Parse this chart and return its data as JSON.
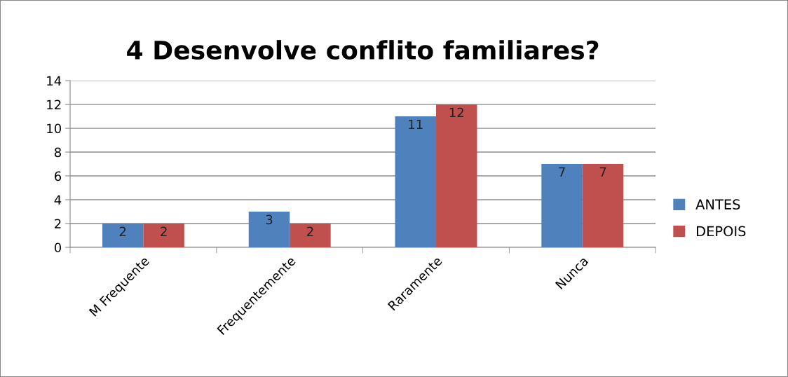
{
  "chart_data": {
    "type": "bar",
    "title": "4 Desenvolve conflito familiares?",
    "categories": [
      "M Frequente",
      "Frequentemente",
      "Raramente",
      "Nunca"
    ],
    "series": [
      {
        "name": "ANTES",
        "color": "#4f81bd",
        "values": [
          2,
          3,
          11,
          7
        ]
      },
      {
        "name": "DEPOIS",
        "color": "#c0504d",
        "values": [
          2,
          2,
          12,
          7
        ]
      }
    ],
    "ylim": [
      0,
      14
    ],
    "yticks": [
      0,
      2,
      4,
      6,
      8,
      10,
      12,
      14
    ],
    "grid": "y",
    "legend": "right",
    "data_labels": true
  }
}
